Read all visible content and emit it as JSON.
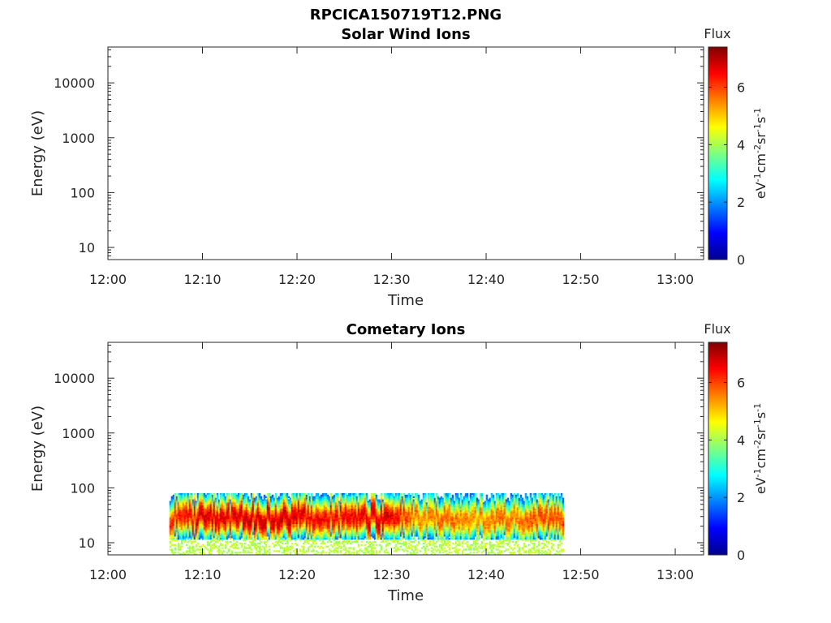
{
  "figure_title": "RPCICA150719T12.PNG",
  "colors": {
    "axis": "#262626",
    "background": "#ffffff",
    "colormap": "jet"
  },
  "chart_data": [
    {
      "type": "heatmap",
      "title": "Solar Wind Ions",
      "xlabel": "Time",
      "ylabel": "Energy (eV)",
      "x_ticks": [
        "12:00",
        "12:10",
        "12:20",
        "12:30",
        "12:40",
        "12:50",
        "13:00"
      ],
      "xlim": [
        "12:00",
        "13:03"
      ],
      "y_scale": "log",
      "y_ticks": [
        "10",
        "100",
        "1000",
        "10000"
      ],
      "ylim": [
        6,
        45000
      ],
      "colorbar": {
        "title": "Flux",
        "label": "eV-1cm-2sr-1s-1",
        "ticks": [
          "0",
          "2",
          "4",
          "6"
        ],
        "range": [
          0,
          7.4
        ]
      },
      "data_extent": null,
      "flux_profile": []
    },
    {
      "type": "heatmap",
      "title": "Cometary Ions",
      "xlabel": "Time",
      "ylabel": "Energy (eV)",
      "x_ticks": [
        "12:00",
        "12:10",
        "12:20",
        "12:30",
        "12:40",
        "12:50",
        "13:00"
      ],
      "xlim": [
        "12:00",
        "13:03"
      ],
      "y_scale": "log",
      "y_ticks": [
        "10",
        "100",
        "1000",
        "10000"
      ],
      "ylim": [
        6,
        45000
      ],
      "colorbar": {
        "title": "Flux",
        "label": "eV-1cm-2sr-1s-1",
        "ticks": [
          "0",
          "2",
          "4",
          "6"
        ],
        "range": [
          0,
          7.4
        ]
      },
      "data_extent": {
        "time_start": "12:06.5",
        "time_end": "12:48.2",
        "energy_min": 6,
        "energy_max": 80
      },
      "flux_profile": [
        {
          "time": "12:07",
          "peak_flux": 6.6
        },
        {
          "time": "12:09",
          "peak_flux": 7.0
        },
        {
          "time": "12:11",
          "peak_flux": 7.2
        },
        {
          "time": "12:13",
          "peak_flux": 7.0
        },
        {
          "time": "12:15",
          "peak_flux": 7.3
        },
        {
          "time": "12:17",
          "peak_flux": 7.1
        },
        {
          "time": "12:19",
          "peak_flux": 7.3
        },
        {
          "time": "12:21",
          "peak_flux": 7.0
        },
        {
          "time": "12:23",
          "peak_flux": 6.8
        },
        {
          "time": "12:25",
          "peak_flux": 6.9
        },
        {
          "time": "12:27",
          "peak_flux": 7.0
        },
        {
          "time": "12:29",
          "peak_flux": 7.3
        },
        {
          "time": "12:31",
          "peak_flux": 6.6
        },
        {
          "time": "12:33",
          "peak_flux": 5.8
        },
        {
          "time": "12:35",
          "peak_flux": 6.2
        },
        {
          "time": "12:37",
          "peak_flux": 6.0
        },
        {
          "time": "12:39",
          "peak_flux": 5.8
        },
        {
          "time": "12:41",
          "peak_flux": 6.1
        },
        {
          "time": "12:43",
          "peak_flux": 6.0
        },
        {
          "time": "12:45",
          "peak_flux": 6.3
        },
        {
          "time": "12:47",
          "peak_flux": 6.4
        }
      ]
    }
  ]
}
